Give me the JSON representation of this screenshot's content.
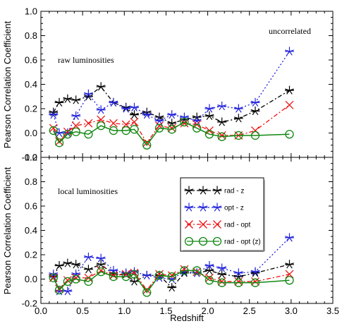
{
  "chart_data": [
    {
      "type": "line",
      "panel": "top",
      "xlabel": "",
      "ylabel": "Pearson Correlation Coefficient",
      "xlim": [
        0.0,
        3.5
      ],
      "ylim": [
        -0.2,
        1.0
      ],
      "yticks": [
        "-0.2",
        "0.0",
        "0.2",
        "0.4",
        "0.6",
        "0.8",
        "1.0"
      ],
      "annotations": [
        "raw luminosities",
        "uncorrelated"
      ],
      "series": [
        {
          "label": "rad - z",
          "color": "#000000",
          "marker": "star",
          "dash": "6,3,2,3",
          "x": [
            0.15,
            0.22,
            0.32,
            0.42,
            0.57,
            0.72,
            0.87,
            1.02,
            1.12,
            1.27,
            1.42,
            1.57,
            1.72,
            1.87,
            2.02,
            2.17,
            2.37,
            2.57,
            2.98
          ],
          "y": [
            0.17,
            0.25,
            0.28,
            0.27,
            0.3,
            0.38,
            0.25,
            0.21,
            0.15,
            0.17,
            0.13,
            0.08,
            0.11,
            0.13,
            0.14,
            0.09,
            0.12,
            0.18,
            0.35
          ]
        },
        {
          "label": "opt - z",
          "color": "#2222dd",
          "marker": "star",
          "dash": "2,3",
          "x": [
            0.15,
            0.22,
            0.32,
            0.42,
            0.57,
            0.72,
            0.87,
            1.02,
            1.12,
            1.27,
            1.42,
            1.57,
            1.72,
            1.87,
            2.02,
            2.17,
            2.37,
            2.57,
            2.98
          ],
          "y": [
            0.15,
            0.0,
            0.0,
            0.14,
            0.32,
            0.19,
            0.25,
            0.2,
            0.21,
            0.15,
            0.1,
            0.15,
            0.13,
            0.1,
            0.2,
            0.22,
            0.2,
            0.25,
            0.67
          ]
        },
        {
          "label": "rad - opt",
          "color": "#ee1111",
          "marker": "x",
          "dash": "6,3,2,3",
          "x": [
            0.15,
            0.22,
            0.32,
            0.42,
            0.57,
            0.72,
            0.87,
            1.02,
            1.12,
            1.27,
            1.42,
            1.57,
            1.72,
            1.87,
            2.02,
            2.17,
            2.37,
            2.57,
            2.98
          ],
          "y": [
            0.04,
            -0.07,
            0.01,
            0.06,
            0.08,
            0.11,
            0.08,
            0.07,
            0.09,
            -0.08,
            0.06,
            0.04,
            0.08,
            0.07,
            0.02,
            -0.02,
            -0.02,
            0.02,
            0.23
          ]
        },
        {
          "label": "rad - opt (z)",
          "color": "#118811",
          "marker": "circle",
          "dash": "",
          "x": [
            0.15,
            0.22,
            0.32,
            0.42,
            0.57,
            0.72,
            0.87,
            1.02,
            1.12,
            1.27,
            1.42,
            1.57,
            1.72,
            1.87,
            2.02,
            2.17,
            2.37,
            2.57,
            2.98
          ],
          "y": [
            0.02,
            -0.08,
            -0.01,
            0.01,
            -0.01,
            0.06,
            0.02,
            0.02,
            0.03,
            -0.1,
            0.04,
            0.03,
            0.09,
            0.04,
            -0.01,
            -0.03,
            -0.02,
            -0.02,
            -0.01
          ]
        }
      ]
    },
    {
      "type": "line",
      "panel": "bottom",
      "xlabel": "Redshift",
      "ylabel": "Pearson Correlation Coefficient",
      "xlim": [
        0.0,
        3.5
      ],
      "ylim": [
        -0.2,
        1.0
      ],
      "xticks": [
        "0.0",
        "0.5",
        "1.0",
        "1.5",
        "2.0",
        "2.5",
        "3.0",
        "3.5"
      ],
      "yticks": [
        "-0.2",
        "0.0",
        "0.2",
        "0.4",
        "0.6",
        "0.8",
        "1.0"
      ],
      "annotations": [
        "local luminosities"
      ],
      "legend_position": "upper-middle",
      "series": [
        {
          "label": "rad - z",
          "color": "#000000",
          "marker": "star",
          "dash": "6,3,2,3",
          "x": [
            0.15,
            0.22,
            0.32,
            0.42,
            0.57,
            0.72,
            0.87,
            1.02,
            1.12,
            1.27,
            1.42,
            1.57,
            1.72,
            1.87,
            2.02,
            2.17,
            2.37,
            2.57,
            2.98
          ],
          "y": [
            0.02,
            0.11,
            0.13,
            0.12,
            0.08,
            0.12,
            0.04,
            0.04,
            -0.02,
            0.03,
            0.03,
            -0.07,
            0.05,
            0.05,
            0.07,
            0.04,
            0.02,
            0.05,
            0.12
          ]
        },
        {
          "label": "opt - z",
          "color": "#2222dd",
          "marker": "star",
          "dash": "2,3",
          "x": [
            0.15,
            0.22,
            0.32,
            0.42,
            0.57,
            0.72,
            0.87,
            1.02,
            1.12,
            1.27,
            1.42,
            1.57,
            1.72,
            1.87,
            2.02,
            2.17,
            2.37,
            2.57,
            2.98
          ],
          "y": [
            0.04,
            -0.1,
            -0.1,
            0.04,
            0.18,
            0.17,
            0.07,
            0.05,
            0.06,
            0.03,
            0.01,
            0.0,
            0.06,
            0.05,
            0.11,
            0.09,
            0.05,
            0.06,
            0.34
          ]
        },
        {
          "label": "rad - opt",
          "color": "#ee1111",
          "marker": "x",
          "dash": "6,3,2,3",
          "x": [
            0.15,
            0.22,
            0.32,
            0.42,
            0.57,
            0.72,
            0.87,
            1.02,
            1.12,
            1.27,
            1.42,
            1.57,
            1.72,
            1.87,
            2.02,
            2.17,
            2.37,
            2.57,
            2.98
          ],
          "y": [
            0.01,
            -0.08,
            -0.01,
            0.01,
            0.01,
            0.07,
            0.03,
            0.04,
            0.05,
            -0.09,
            0.04,
            0.03,
            0.08,
            0.06,
            0.01,
            -0.02,
            -0.02,
            -0.02,
            0.04
          ]
        },
        {
          "label": "rad - opt (z)",
          "color": "#118811",
          "marker": "circle",
          "dash": "",
          "x": [
            0.15,
            0.22,
            0.32,
            0.42,
            0.57,
            0.72,
            0.87,
            1.02,
            1.12,
            1.27,
            1.42,
            1.57,
            1.72,
            1.87,
            2.02,
            2.17,
            2.37,
            2.57,
            2.98
          ],
          "y": [
            0.01,
            -0.09,
            -0.02,
            0.0,
            -0.02,
            0.06,
            0.02,
            0.02,
            0.04,
            -0.11,
            0.03,
            0.02,
            0.07,
            0.07,
            -0.01,
            -0.03,
            -0.03,
            -0.03,
            -0.01
          ]
        }
      ]
    }
  ]
}
